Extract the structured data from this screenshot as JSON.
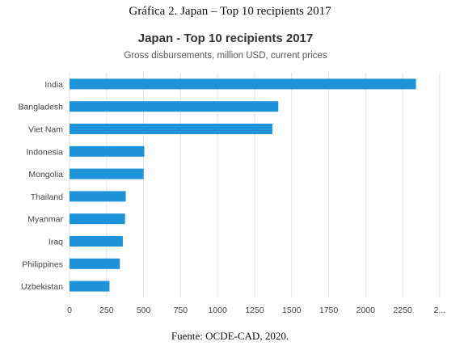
{
  "figure": {
    "caption": "Gráfica 2. Japan – Top 10 recipients 2017",
    "source": "Fuente: OCDE-CAD, 2020."
  },
  "colors": {
    "bar": "#1f93da",
    "grid": "#e3e3e3"
  },
  "chart_data": {
    "type": "bar",
    "orientation": "horizontal",
    "title": "Japan - Top 10 recipients 2017",
    "subtitle": "Gross disbursements, million USD, current prices",
    "categories": [
      "India",
      "Bangladesh",
      "Viet Nam",
      "Indonesia",
      "Mongolia",
      "Thailand",
      "Myanmar",
      "Iraq",
      "Philippines",
      "Uzbekistan"
    ],
    "values": [
      2340,
      1410,
      1370,
      505,
      500,
      380,
      375,
      360,
      340,
      270
    ],
    "xlim": [
      0,
      2375
    ],
    "xticks": [
      "0",
      "250",
      "500",
      "750",
      "1000",
      "1250",
      "1500",
      "1750",
      "2000",
      "2250",
      "2..."
    ],
    "grid": "vertical",
    "legend": "none"
  }
}
